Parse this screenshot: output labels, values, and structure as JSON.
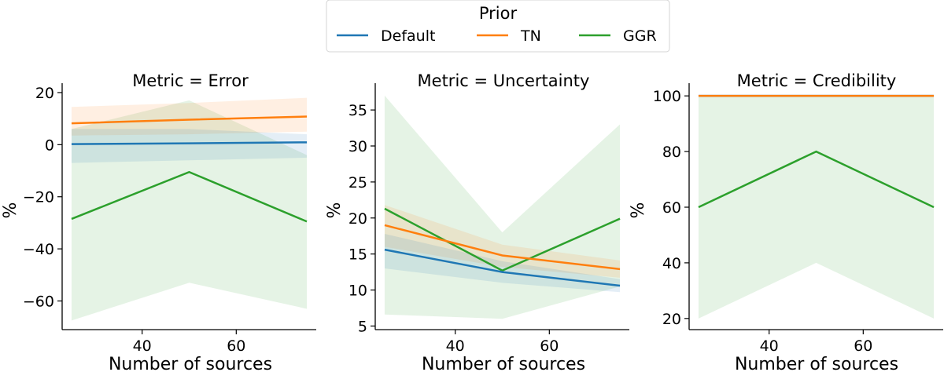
{
  "legend": {
    "title": "Prior",
    "entries": [
      {
        "label": "Default",
        "color": "#1f77b4"
      },
      {
        "label": "TN",
        "color": "#ff7f0e"
      },
      {
        "label": "GGR",
        "color": "#2ca02c"
      }
    ]
  },
  "chart_data": [
    {
      "type": "line",
      "title": "Metric = Error",
      "xlabel": "Number of sources",
      "ylabel": "%",
      "x": [
        25,
        50,
        75
      ],
      "xlim": [
        23,
        77
      ],
      "ylim": [
        -71,
        23
      ],
      "xticks": [
        40,
        60
      ],
      "yticks": [
        -60,
        -40,
        -20,
        0,
        20
      ],
      "xtick_labels": [
        "40",
        "60"
      ],
      "ytick_labels": [
        "−60",
        "−40",
        "−20",
        "0",
        "20"
      ],
      "series": [
        {
          "name": "GGR",
          "values": [
            -28.5,
            -10.5,
            -29.5
          ],
          "lower": [
            -67.5,
            -53,
            -63
          ],
          "upper": [
            6,
            17,
            -4
          ]
        },
        {
          "name": "TN",
          "values": [
            8.2,
            9.6,
            10.8
          ],
          "lower": [
            3.5,
            4,
            5
          ],
          "upper": [
            14.5,
            16,
            18
          ]
        },
        {
          "name": "Default",
          "values": [
            0.2,
            0.5,
            0.9
          ],
          "lower": [
            -7,
            -6,
            -5
          ],
          "upper": [
            6,
            6,
            4
          ]
        }
      ]
    },
    {
      "type": "line",
      "title": "Metric = Uncertainty",
      "xlabel": "Number of sources",
      "ylabel": "%",
      "x": [
        25,
        50,
        75
      ],
      "xlim": [
        23,
        77
      ],
      "ylim": [
        4.5,
        38.5
      ],
      "xticks": [
        40,
        60
      ],
      "yticks": [
        5,
        10,
        15,
        20,
        25,
        30,
        35
      ],
      "xtick_labels": [
        "40",
        "60"
      ],
      "ytick_labels": [
        "5",
        "10",
        "15",
        "20",
        "25",
        "30",
        "35"
      ],
      "series": [
        {
          "name": "GGR",
          "values": [
            21.3,
            12.7,
            19.9
          ],
          "lower": [
            6.6,
            6,
            10.5
          ],
          "upper": [
            37,
            18,
            33
          ]
        },
        {
          "name": "TN",
          "values": [
            19,
            14.8,
            12.9
          ],
          "lower": [
            16,
            13.2,
            11.7
          ],
          "upper": [
            21.8,
            16.3,
            14.1
          ]
        },
        {
          "name": "Default",
          "values": [
            15.6,
            12.5,
            10.6
          ],
          "lower": [
            13,
            11,
            9.7
          ],
          "upper": [
            17.8,
            14,
            11.5
          ]
        }
      ]
    },
    {
      "type": "line",
      "title": "Metric = Credibility",
      "xlabel": "Number of sources",
      "ylabel": "%",
      "x": [
        25,
        50,
        75
      ],
      "xlim": [
        23,
        77
      ],
      "ylim": [
        16,
        104
      ],
      "xticks": [
        40,
        60
      ],
      "yticks": [
        20,
        40,
        60,
        80,
        100
      ],
      "xtick_labels": [
        "40",
        "60"
      ],
      "ytick_labels": [
        "20",
        "40",
        "60",
        "80",
        "100"
      ],
      "series": [
        {
          "name": "GGR",
          "values": [
            60,
            80,
            60
          ],
          "lower": [
            20,
            40,
            20
          ],
          "upper": [
            100,
            100,
            100
          ]
        },
        {
          "name": "Default",
          "values": [
            100,
            100,
            100
          ],
          "lower": [
            100,
            100,
            100
          ],
          "upper": [
            100,
            100,
            100
          ]
        },
        {
          "name": "TN",
          "values": [
            100,
            100,
            100
          ],
          "lower": [
            100,
            100,
            100
          ],
          "upper": [
            100,
            100,
            100
          ]
        }
      ]
    }
  ]
}
